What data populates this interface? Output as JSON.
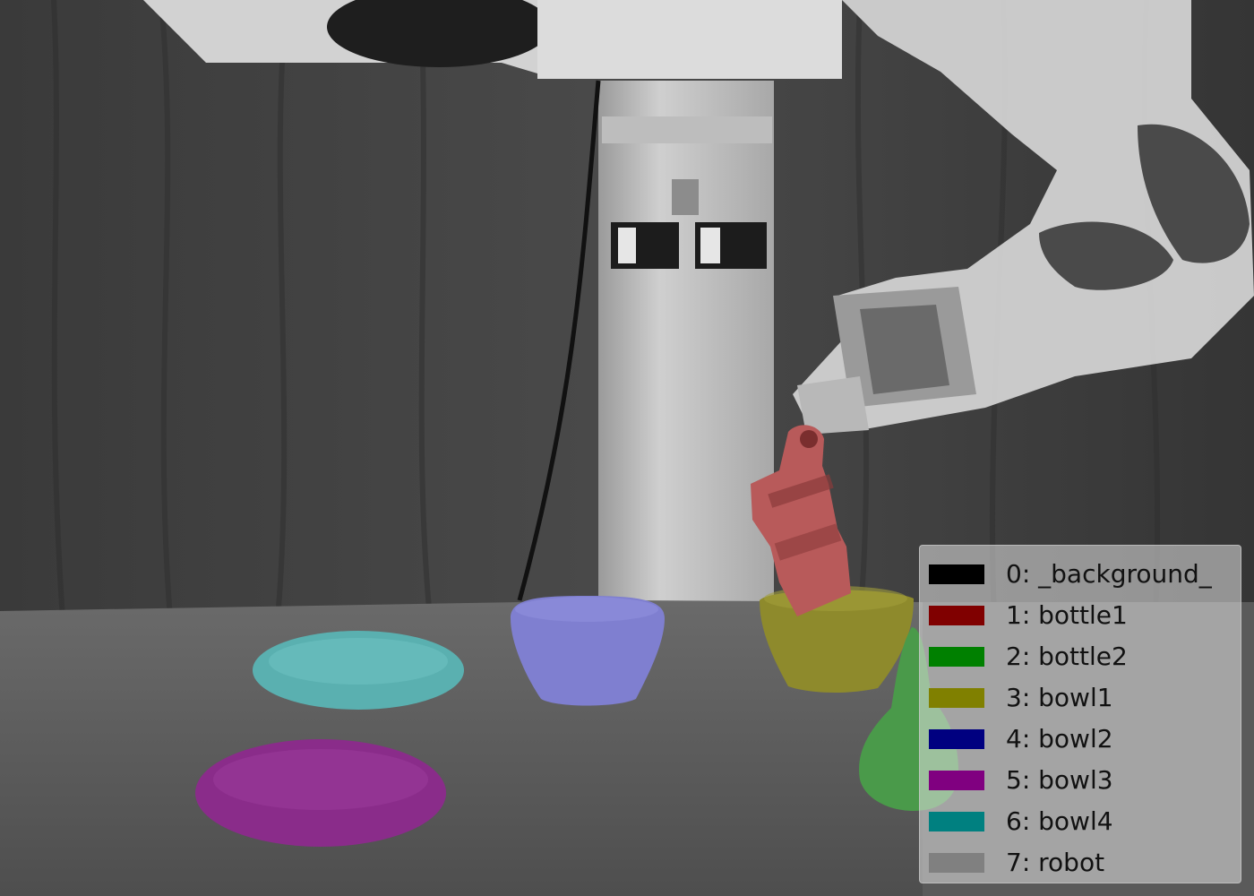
{
  "legend": {
    "items": [
      {
        "label": "0: _background_",
        "color": "#000000"
      },
      {
        "label": "1: bottle1",
        "color": "#800000"
      },
      {
        "label": "2: bottle2",
        "color": "#008000"
      },
      {
        "label": "3: bowl1",
        "color": "#808000"
      },
      {
        "label": "4: bowl2",
        "color": "#000080"
      },
      {
        "label": "5: bowl3",
        "color": "#800080"
      },
      {
        "label": "6: bowl4",
        "color": "#008080"
      },
      {
        "label": "7: robot",
        "color": "#808080"
      }
    ]
  },
  "overlays": {
    "bottle1": "#b85a5a",
    "bottle2": "#4a9a4a",
    "bowl1": "#8e8a2c",
    "bowl2": "#7f7fd0",
    "bowl3": "#8a2c8a",
    "bowl4": "#5ab0b0",
    "robot": "#d2d2d2"
  }
}
